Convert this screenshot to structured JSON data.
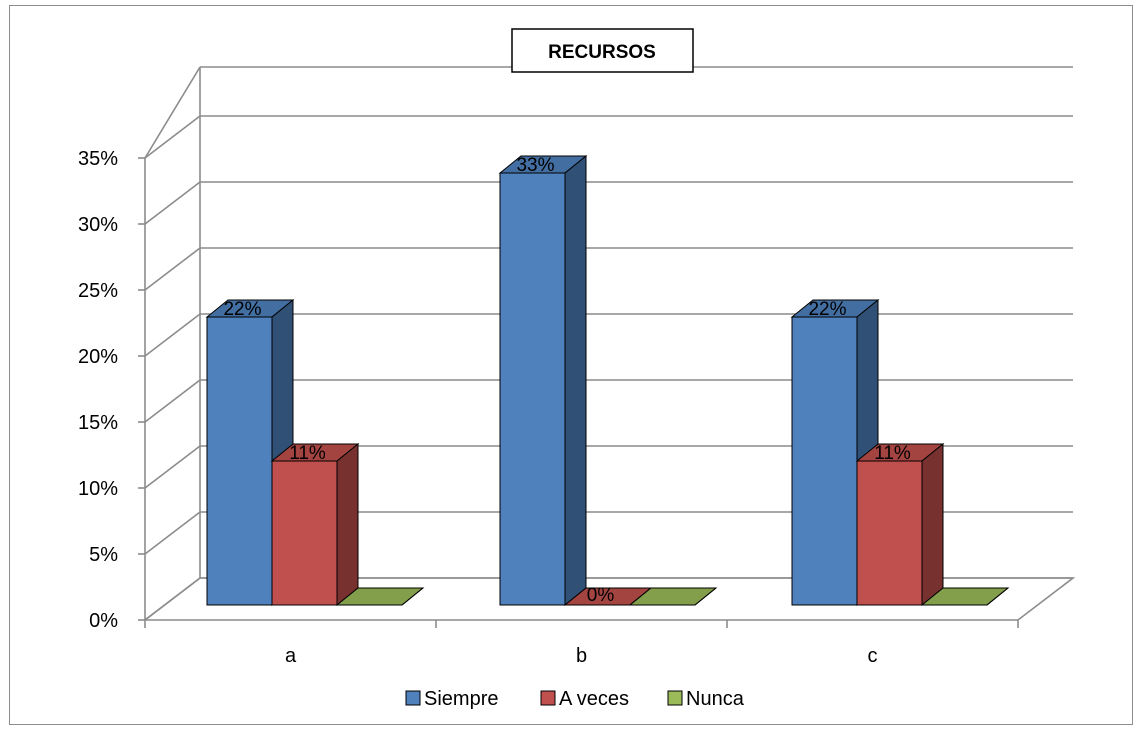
{
  "chart_data": {
    "type": "bar",
    "variant": "3d-clustered-column",
    "title": "RECURSOS",
    "categories": [
      "a",
      "b",
      "c"
    ],
    "series": [
      {
        "name": "Siempre",
        "values": [
          22,
          33,
          22
        ],
        "labels": [
          "22%",
          "33%",
          "22%"
        ],
        "color": "#4f81bd"
      },
      {
        "name": "A veces",
        "values": [
          11,
          0,
          11
        ],
        "labels": [
          "11%",
          "0%",
          "11%"
        ],
        "color": "#c0504d"
      },
      {
        "name": "Nunca",
        "values": [
          0,
          0,
          0
        ],
        "labels": [
          "",
          "",
          ""
        ],
        "color": "#9bbb59"
      }
    ],
    "y_ticks": [
      "0%",
      "5%",
      "10%",
      "15%",
      "20%",
      "25%",
      "30%",
      "35%"
    ],
    "ylim": [
      0,
      35
    ],
    "grid": true,
    "legend_position": "bottom"
  }
}
